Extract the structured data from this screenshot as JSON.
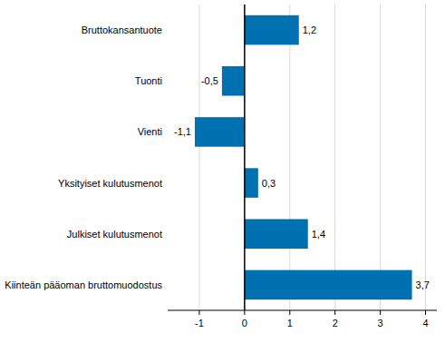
{
  "chart_data": {
    "type": "bar",
    "orientation": "horizontal",
    "categories": [
      "Bruttokansantuote",
      "Tuonti",
      "Vienti",
      "Yksityiset kulutusmenot",
      "Julkiset kulutusmenot",
      "Kiinteän pääoman bruttomuodostus"
    ],
    "values": [
      1.2,
      -0.5,
      -1.1,
      0.3,
      1.4,
      3.7
    ],
    "value_labels": [
      "1,2",
      "-0,5",
      "-1,1",
      "0,3",
      "1,4",
      "3,7"
    ],
    "color": "#0071b0",
    "xlim": [
      -1.7,
      4.25
    ],
    "xticks": [
      -1,
      0,
      1,
      2,
      3,
      4
    ],
    "grid": true,
    "data_labels": true
  }
}
